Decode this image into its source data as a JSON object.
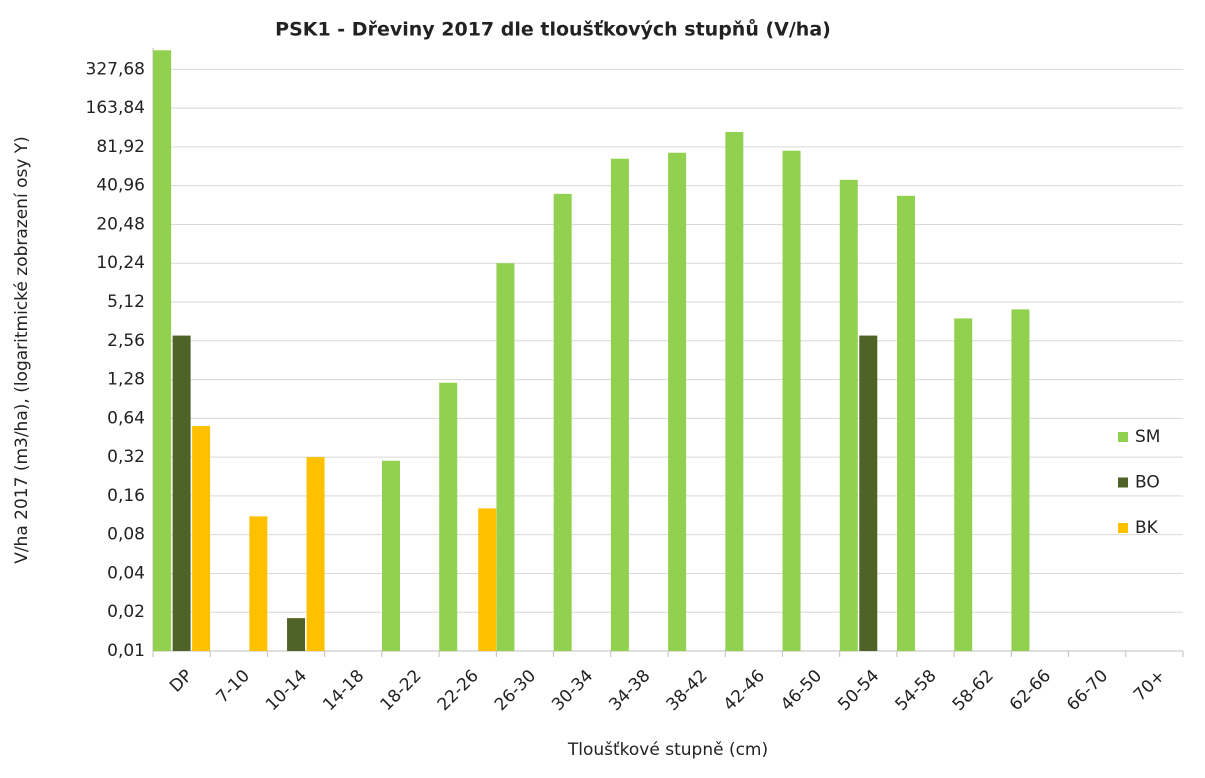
{
  "chart_data": {
    "type": "bar",
    "title": "PSK1 - Dřeviny 2017 dle tloušťkových stupňů (V/ha)",
    "xlabel": "Tloušťkové stupně (cm)",
    "ylabel": "V/ha 2017 (m3/ha), (logaritmické zobrazení osy Y)",
    "categories": [
      "DP",
      "7-10",
      "10-14",
      "14-18",
      "18-22",
      "22-26",
      "26-30",
      "30-34",
      "34-38",
      "38-42",
      "42-46",
      "46-50",
      "50-54",
      "54-58",
      "58-62",
      "62-66",
      "66-70",
      "70+"
    ],
    "series": [
      {
        "name": "SM",
        "color": "#92d050",
        "values": [
          461,
          null,
          null,
          null,
          0.3,
          1.21,
          10.24,
          35.4,
          66.3,
          73.8,
          107,
          76.5,
          45.5,
          34.2,
          3.82,
          4.49,
          null,
          null
        ]
      },
      {
        "name": "BO",
        "color": "#4f6228",
        "values": [
          2.81,
          null,
          0.018,
          null,
          null,
          null,
          null,
          null,
          null,
          null,
          null,
          null,
          2.81,
          null,
          null,
          null,
          null,
          null
        ]
      },
      {
        "name": "BK",
        "color": "#ffc000",
        "values": [
          0.558,
          0.111,
          0.32,
          null,
          null,
          0.128,
          null,
          null,
          null,
          null,
          null,
          null,
          null,
          null,
          null,
          null,
          null,
          null
        ]
      }
    ],
    "yscale": "log",
    "ylim": [
      0.01,
      480
    ],
    "yticks": [
      {
        "value": 0.01,
        "label": "0,01"
      },
      {
        "value": 0.02,
        "label": "0,02"
      },
      {
        "value": 0.04,
        "label": "0,04"
      },
      {
        "value": 0.08,
        "label": "0,08"
      },
      {
        "value": 0.16,
        "label": "0,16"
      },
      {
        "value": 0.32,
        "label": "0,32"
      },
      {
        "value": 0.64,
        "label": "0,64"
      },
      {
        "value": 1.28,
        "label": "1,28"
      },
      {
        "value": 2.56,
        "label": "2,56"
      },
      {
        "value": 5.12,
        "label": "5,12"
      },
      {
        "value": 10.24,
        "label": "10,24"
      },
      {
        "value": 20.48,
        "label": "20,48"
      },
      {
        "value": 40.96,
        "label": "40,96"
      },
      {
        "value": 81.92,
        "label": "81,92"
      },
      {
        "value": 163.84,
        "label": "163,84"
      },
      {
        "value": 327.68,
        "label": "327,68"
      }
    ],
    "grid": true,
    "legend": "right"
  }
}
